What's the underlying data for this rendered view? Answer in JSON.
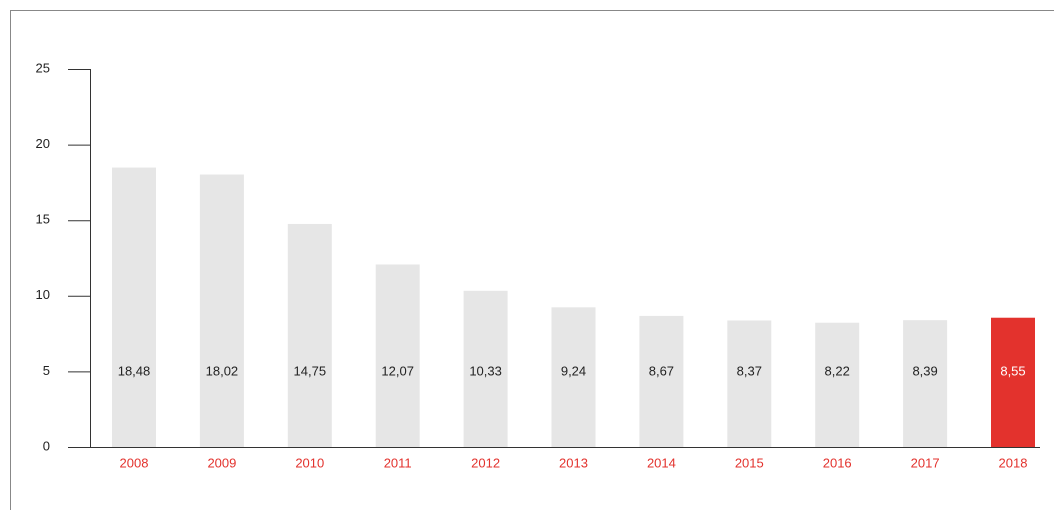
{
  "chart_data": {
    "type": "bar",
    "categories": [
      "2008",
      "2009",
      "2010",
      "2011",
      "2012",
      "2013",
      "2014",
      "2015",
      "2016",
      "2017",
      "2018"
    ],
    "values": [
      18.48,
      18.02,
      14.75,
      12.07,
      10.33,
      9.24,
      8.67,
      8.37,
      8.22,
      8.39,
      8.55
    ],
    "value_labels": [
      "18,48",
      "18,02",
      "14,75",
      "12,07",
      "10,33",
      "9,24",
      "8,67",
      "8,37",
      "8,22",
      "8,39",
      "8,55"
    ],
    "colors": [
      "#e6e6e6",
      "#e6e6e6",
      "#e6e6e6",
      "#e6e6e6",
      "#e6e6e6",
      "#e6e6e6",
      "#e6e6e6",
      "#e6e6e6",
      "#e6e6e6",
      "#e6e6e6",
      "#e3322d"
    ],
    "value_label_colors": [
      "#222222",
      "#222222",
      "#222222",
      "#222222",
      "#222222",
      "#222222",
      "#222222",
      "#222222",
      "#222222",
      "#222222",
      "#ffffff"
    ],
    "category_color": "#e3322d",
    "ylim": [
      0,
      25
    ],
    "yticks": [
      0,
      5,
      10,
      15,
      20,
      25
    ]
  }
}
